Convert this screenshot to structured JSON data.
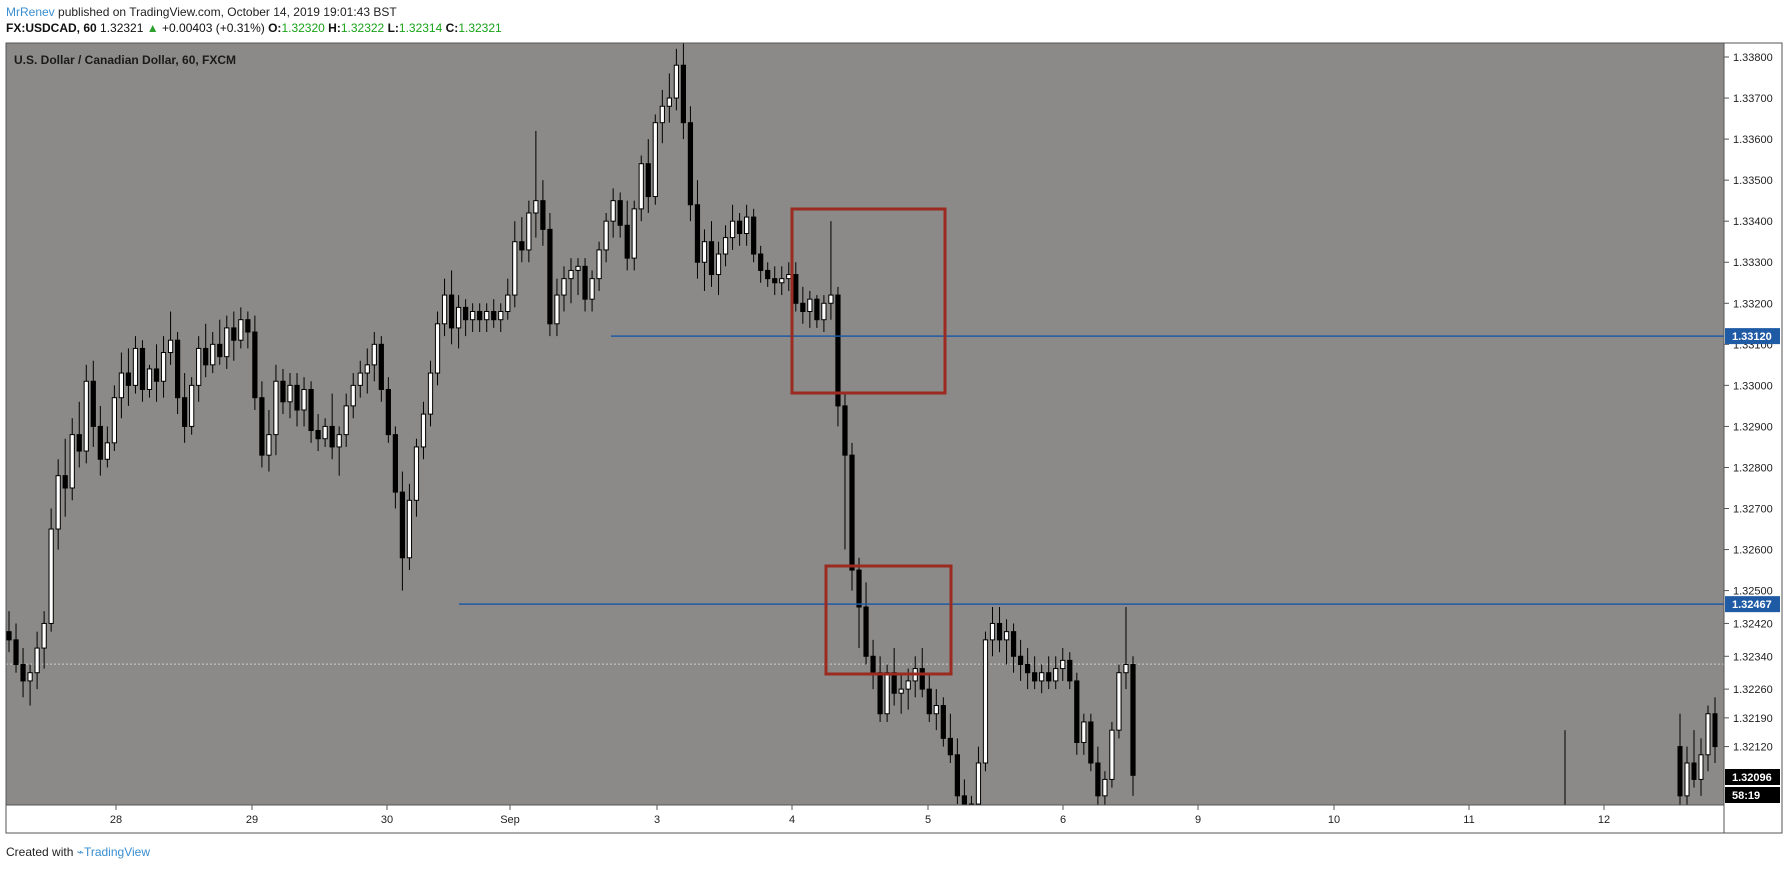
{
  "header": {
    "user": "MrRenev",
    "published": " published on TradingView.com, October 14, 2019 19:01:43 BST",
    "symbol_tf": "FX:USDCAD, 60",
    "last": "1.32321",
    "change": "+0.00403 (+0.31%)",
    "o_label": "O:",
    "o_value": "1.32320",
    "h_label": "H:",
    "h_value": "1.32322",
    "l_label": "L:",
    "l_value": "1.32314",
    "c_label": "C:",
    "c_value": "1.32321"
  },
  "footer": {
    "created_with": "Created with",
    "brand": "TradingView"
  },
  "colors": {
    "chart_bg": "#8b8a88",
    "axis_bg": "#ffffff",
    "candle_up": "#ffffff",
    "candle_down": "#000000",
    "line_color": "#1f5aa5",
    "box_color": "#9b2b20",
    "label_bg": "#1f5aa5",
    "dark_label": "#000000"
  },
  "chart_data": {
    "type": "candlestick",
    "title": "U.S. Dollar / Canadian Dollar, 60, FXCM",
    "y_ticks": [
      "1.33800",
      "1.33700",
      "1.33600",
      "1.33500",
      "1.33400",
      "1.33300",
      "1.33200",
      "1.33100",
      "1.33000",
      "1.32900",
      "1.32800",
      "1.32700",
      "1.32600",
      "1.32500",
      "1.32420",
      "1.32340",
      "1.32260",
      "1.32190",
      "1.32120"
    ],
    "x_ticks": [
      "28",
      "29",
      "30",
      "Sep",
      "3",
      "4",
      "5",
      "6",
      "9",
      "10",
      "11",
      "12"
    ],
    "horizontal_lines": [
      {
        "label": "1.33120",
        "price": 1.3312
      },
      {
        "label": "1.32467",
        "price": 1.32467
      }
    ],
    "current_price_label": "1.32096",
    "countdown_label": "58:19",
    "last_close_dotted": 1.32321,
    "boxes": [
      {
        "price_top": 1.3345,
        "price_bottom": 1.3301,
        "date_from": "Sep 4 ~00:00",
        "date_to": "Sep 5 ~03:00"
      },
      {
        "price_top": 1.326,
        "price_bottom": 1.3234,
        "date_from": "Sep 4 ~07:00",
        "date_to": "Sep 5 ~05:00"
      }
    ],
    "candles": [
      [
        1.324,
        1.3245,
        1.3235,
        1.3238
      ],
      [
        1.3238,
        1.3242,
        1.323,
        1.3232
      ],
      [
        1.3232,
        1.3236,
        1.3224,
        1.3228
      ],
      [
        1.3228,
        1.3232,
        1.3222,
        1.323
      ],
      [
        1.323,
        1.324,
        1.3226,
        1.3236
      ],
      [
        1.3236,
        1.3245,
        1.3231,
        1.3242
      ],
      [
        1.3242,
        1.327,
        1.324,
        1.3265
      ],
      [
        1.3265,
        1.3282,
        1.326,
        1.3278
      ],
      [
        1.3278,
        1.3287,
        1.3268,
        1.3275
      ],
      [
        1.3275,
        1.3292,
        1.3272,
        1.3288
      ],
      [
        1.3288,
        1.3296,
        1.328,
        1.3284
      ],
      [
        1.3284,
        1.3305,
        1.3281,
        1.3301
      ],
      [
        1.3301,
        1.3306,
        1.3285,
        1.329
      ],
      [
        1.329,
        1.3295,
        1.3278,
        1.3282
      ],
      [
        1.3282,
        1.329,
        1.328,
        1.3286
      ],
      [
        1.3286,
        1.33,
        1.3284,
        1.3297
      ],
      [
        1.3297,
        1.3308,
        1.3292,
        1.3303
      ],
      [
        1.3303,
        1.3309,
        1.3295,
        1.33
      ],
      [
        1.33,
        1.3312,
        1.3298,
        1.3309
      ],
      [
        1.3309,
        1.3311,
        1.3296,
        1.3299
      ],
      [
        1.3299,
        1.3305,
        1.3297,
        1.3304
      ],
      [
        1.3304,
        1.331,
        1.3296,
        1.3301
      ],
      [
        1.3301,
        1.3312,
        1.3297,
        1.3308
      ],
      [
        1.3308,
        1.3318,
        1.3305,
        1.3311
      ],
      [
        1.3311,
        1.3313,
        1.3293,
        1.3297
      ],
      [
        1.3297,
        1.3303,
        1.3286,
        1.329
      ],
      [
        1.329,
        1.3302,
        1.3288,
        1.33
      ],
      [
        1.33,
        1.3312,
        1.3296,
        1.3309
      ],
      [
        1.3309,
        1.3315,
        1.3302,
        1.3305
      ],
      [
        1.3305,
        1.3313,
        1.3303,
        1.331
      ],
      [
        1.331,
        1.3316,
        1.3305,
        1.3307
      ],
      [
        1.3307,
        1.3317,
        1.3304,
        1.3314
      ],
      [
        1.3314,
        1.3318,
        1.3306,
        1.3311
      ],
      [
        1.3311,
        1.3319,
        1.3309,
        1.3316
      ],
      [
        1.3316,
        1.3318,
        1.3309,
        1.3313
      ],
      [
        1.3313,
        1.3317,
        1.3294,
        1.3297
      ],
      [
        1.3297,
        1.3301,
        1.328,
        1.3283
      ],
      [
        1.3283,
        1.3294,
        1.3279,
        1.3288
      ],
      [
        1.3288,
        1.3305,
        1.3283,
        1.3301
      ],
      [
        1.3301,
        1.3304,
        1.3293,
        1.3296
      ],
      [
        1.3296,
        1.3303,
        1.3292,
        1.33
      ],
      [
        1.33,
        1.3303,
        1.329,
        1.3294
      ],
      [
        1.3294,
        1.3302,
        1.329,
        1.3299
      ],
      [
        1.3299,
        1.3301,
        1.3286,
        1.3289
      ],
      [
        1.3289,
        1.3293,
        1.3284,
        1.3287
      ],
      [
        1.3287,
        1.3292,
        1.3285,
        1.329
      ],
      [
        1.329,
        1.3298,
        1.3282,
        1.3285
      ],
      [
        1.3285,
        1.329,
        1.3278,
        1.3288
      ],
      [
        1.3288,
        1.3298,
        1.3285,
        1.3295
      ],
      [
        1.3295,
        1.3303,
        1.3292,
        1.33
      ],
      [
        1.33,
        1.3306,
        1.3297,
        1.3303
      ],
      [
        1.3303,
        1.3309,
        1.3298,
        1.3305
      ],
      [
        1.3305,
        1.3313,
        1.3301,
        1.331
      ],
      [
        1.331,
        1.3312,
        1.3296,
        1.3299
      ],
      [
        1.3299,
        1.3302,
        1.3286,
        1.3288
      ],
      [
        1.3288,
        1.329,
        1.327,
        1.3274
      ],
      [
        1.3274,
        1.3279,
        1.325,
        1.3258
      ],
      [
        1.3258,
        1.3276,
        1.3255,
        1.3272
      ],
      [
        1.3272,
        1.3287,
        1.3268,
        1.3285
      ],
      [
        1.3285,
        1.3296,
        1.3282,
        1.3293
      ],
      [
        1.3293,
        1.3306,
        1.329,
        1.3303
      ],
      [
        1.3303,
        1.3318,
        1.33,
        1.3315
      ],
      [
        1.3315,
        1.3326,
        1.3312,
        1.3322
      ],
      [
        1.3322,
        1.3328,
        1.331,
        1.3314
      ],
      [
        1.3314,
        1.3322,
        1.3309,
        1.3319
      ],
      [
        1.3319,
        1.3321,
        1.3312,
        1.3316
      ],
      [
        1.3316,
        1.332,
        1.3313,
        1.3318
      ],
      [
        1.3318,
        1.332,
        1.3313,
        1.3316
      ],
      [
        1.3316,
        1.332,
        1.3313,
        1.3318
      ],
      [
        1.3318,
        1.3321,
        1.3314,
        1.3316
      ],
      [
        1.3316,
        1.332,
        1.3313,
        1.3318
      ],
      [
        1.3318,
        1.3326,
        1.3316,
        1.3322
      ],
      [
        1.3322,
        1.334,
        1.3319,
        1.3335
      ],
      [
        1.3335,
        1.3341,
        1.333,
        1.3333
      ],
      [
        1.3333,
        1.3345,
        1.333,
        1.3342
      ],
      [
        1.3342,
        1.3362,
        1.3336,
        1.3345
      ],
      [
        1.3345,
        1.335,
        1.3334,
        1.3338
      ],
      [
        1.3338,
        1.3342,
        1.3312,
        1.3315
      ],
      [
        1.3315,
        1.3326,
        1.3312,
        1.3322
      ],
      [
        1.3322,
        1.3329,
        1.3318,
        1.3326
      ],
      [
        1.3326,
        1.3331,
        1.332,
        1.3328
      ],
      [
        1.3328,
        1.3331,
        1.3322,
        1.3329
      ],
      [
        1.3329,
        1.3331,
        1.3318,
        1.3321
      ],
      [
        1.3321,
        1.3328,
        1.3318,
        1.3326
      ],
      [
        1.3326,
        1.3335,
        1.3323,
        1.3333
      ],
      [
        1.3333,
        1.3342,
        1.333,
        1.334
      ],
      [
        1.334,
        1.3348,
        1.3336,
        1.3345
      ],
      [
        1.3345,
        1.3347,
        1.3336,
        1.3339
      ],
      [
        1.3339,
        1.3345,
        1.3328,
        1.3331
      ],
      [
        1.3331,
        1.3345,
        1.3328,
        1.3343
      ],
      [
        1.3343,
        1.3356,
        1.334,
        1.3354
      ],
      [
        1.3354,
        1.336,
        1.3342,
        1.3346
      ],
      [
        1.3346,
        1.3366,
        1.3344,
        1.3364
      ],
      [
        1.3364,
        1.3372,
        1.3359,
        1.3368
      ],
      [
        1.3368,
        1.3376,
        1.3364,
        1.337
      ],
      [
        1.337,
        1.3382,
        1.3367,
        1.3378
      ],
      [
        1.3378,
        1.3384,
        1.336,
        1.3364
      ],
      [
        1.3364,
        1.3368,
        1.334,
        1.3344
      ],
      [
        1.3344,
        1.335,
        1.3326,
        1.333
      ],
      [
        1.333,
        1.3338,
        1.3323,
        1.3335
      ],
      [
        1.3335,
        1.334,
        1.3324,
        1.3327
      ],
      [
        1.3327,
        1.3335,
        1.3322,
        1.3332
      ],
      [
        1.3332,
        1.3339,
        1.3329,
        1.3336
      ],
      [
        1.3336,
        1.3344,
        1.3333,
        1.334
      ],
      [
        1.334,
        1.3342,
        1.3334,
        1.3337
      ],
      [
        1.3337,
        1.3344,
        1.3334,
        1.3341
      ],
      [
        1.3341,
        1.3343,
        1.333,
        1.3332
      ],
      [
        1.3332,
        1.3334,
        1.3325,
        1.3328
      ],
      [
        1.3328,
        1.333,
        1.3324,
        1.3326
      ],
      [
        1.3326,
        1.3329,
        1.3322,
        1.3325
      ],
      [
        1.3325,
        1.3329,
        1.3322,
        1.3326
      ],
      [
        1.3326,
        1.333,
        1.3323,
        1.3327
      ],
      [
        1.3327,
        1.333,
        1.3318,
        1.332
      ],
      [
        1.332,
        1.3324,
        1.3315,
        1.3318
      ],
      [
        1.3318,
        1.3323,
        1.3314,
        1.3321
      ],
      [
        1.3321,
        1.3322,
        1.3314,
        1.3316
      ],
      [
        1.3316,
        1.3322,
        1.3313,
        1.332
      ],
      [
        1.332,
        1.334,
        1.3316,
        1.3322
      ],
      [
        1.3322,
        1.3324,
        1.329,
        1.3295
      ],
      [
        1.3295,
        1.3298,
        1.326,
        1.3283
      ],
      [
        1.3283,
        1.3286,
        1.325,
        1.3255
      ],
      [
        1.3255,
        1.3258,
        1.3236,
        1.3246
      ],
      [
        1.3246,
        1.3252,
        1.3232,
        1.3234
      ],
      [
        1.3234,
        1.3238,
        1.3226,
        1.323
      ],
      [
        1.323,
        1.3234,
        1.3218,
        1.322
      ],
      [
        1.322,
        1.3232,
        1.3218,
        1.323
      ],
      [
        1.323,
        1.3236,
        1.3222,
        1.3225
      ],
      [
        1.3225,
        1.323,
        1.322,
        1.3226
      ],
      [
        1.3226,
        1.3231,
        1.3221,
        1.3228
      ],
      [
        1.3228,
        1.3234,
        1.3224,
        1.3231
      ],
      [
        1.3231,
        1.3236,
        1.3224,
        1.3226
      ],
      [
        1.3226,
        1.323,
        1.3218,
        1.322
      ],
      [
        1.322,
        1.3226,
        1.3216,
        1.3222
      ],
      [
        1.3222,
        1.3224,
        1.3212,
        1.3214
      ],
      [
        1.3214,
        1.322,
        1.3208,
        1.321
      ],
      [
        1.321,
        1.3214,
        1.3198,
        1.32
      ],
      [
        1.32,
        1.3204,
        1.3188,
        1.3192
      ],
      [
        1.3192,
        1.32,
        1.319,
        1.3198
      ],
      [
        1.3198,
        1.3212,
        1.3196,
        1.3208
      ],
      [
        1.3208,
        1.324,
        1.3206,
        1.3238
      ],
      [
        1.3238,
        1.3246,
        1.3234,
        1.3242
      ],
      [
        1.3242,
        1.3246,
        1.3235,
        1.3238
      ],
      [
        1.3238,
        1.3243,
        1.3232,
        1.324
      ],
      [
        1.324,
        1.3242,
        1.323,
        1.3234
      ],
      [
        1.3234,
        1.3238,
        1.3228,
        1.3232
      ],
      [
        1.3232,
        1.3236,
        1.3226,
        1.323
      ],
      [
        1.323,
        1.3234,
        1.3226,
        1.3228
      ],
      [
        1.3228,
        1.3232,
        1.3225,
        1.323
      ],
      [
        1.323,
        1.3234,
        1.3226,
        1.3228
      ],
      [
        1.3228,
        1.3234,
        1.3226,
        1.3231
      ],
      [
        1.3231,
        1.3236,
        1.3228,
        1.3233
      ],
      [
        1.3233,
        1.3235,
        1.3226,
        1.3228
      ],
      [
        1.3228,
        1.323,
        1.321,
        1.3213
      ],
      [
        1.3213,
        1.322,
        1.321,
        1.3218
      ],
      [
        1.3218,
        1.322,
        1.3206,
        1.3208
      ],
      [
        1.3208,
        1.3212,
        1.3196,
        1.32
      ],
      [
        1.32,
        1.3206,
        1.3194,
        1.3204
      ],
      [
        1.3204,
        1.3218,
        1.3202,
        1.3216
      ],
      [
        1.3216,
        1.3232,
        1.3214,
        1.323
      ],
      [
        1.323,
        1.3246,
        1.3226,
        1.3232
      ],
      [
        1.3232,
        1.3234,
        1.32,
        1.3205
      ]
    ],
    "tail_candles": [
      [
        1.3212,
        1.322,
        1.3196,
        1.32
      ],
      [
        1.32,
        1.3212,
        1.3196,
        1.3208
      ],
      [
        1.3208,
        1.3216,
        1.3202,
        1.3204
      ],
      [
        1.3204,
        1.3214,
        1.32,
        1.321
      ],
      [
        1.321,
        1.3222,
        1.3206,
        1.322
      ],
      [
        1.322,
        1.3224,
        1.3208,
        1.3212
      ]
    ],
    "tail_start_index": 0,
    "isolated_wick": {
      "index_fraction": 0.845,
      "high": 1.3216,
      "low": 1.32
    }
  }
}
